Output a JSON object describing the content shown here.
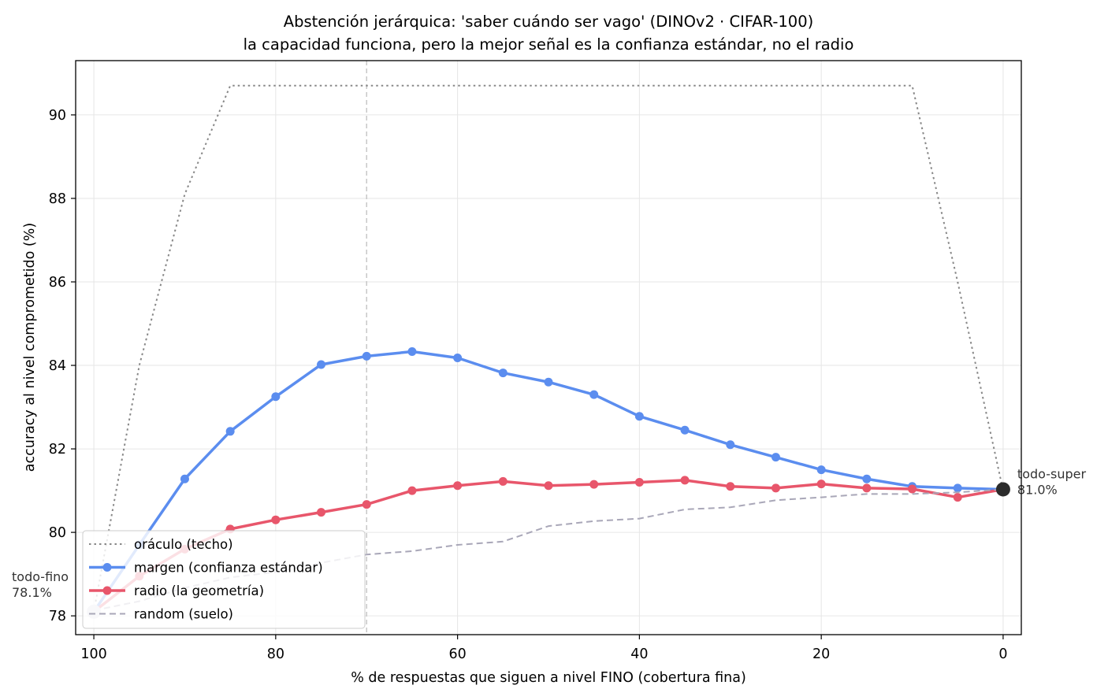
{
  "chart_data": {
    "type": "line",
    "title": "Abstención jerárquica: 'saber cuándo ser vago' (DINOv2 · CIFAR-100)",
    "subtitle": "la capacidad funciona, pero la mejor señal es la confianza estándar, no el radio",
    "xlabel": "% de respuestas que siguen a nivel FINO  (cobertura fina)",
    "ylabel": "accuracy al nivel comprometido (%)",
    "x_reversed": true,
    "xlim": [
      102,
      -2
    ],
    "ylim": [
      77.55,
      91.3
    ],
    "xticks": [
      100,
      80,
      60,
      40,
      20,
      0
    ],
    "yticks": [
      78,
      80,
      82,
      84,
      86,
      88,
      90
    ],
    "grid": true,
    "legend_position": "lower-left",
    "vline_x": 70,
    "x": [
      100,
      95,
      90,
      85,
      80,
      75,
      70,
      65,
      60,
      55,
      50,
      45,
      40,
      35,
      30,
      25,
      20,
      15,
      10,
      5,
      0
    ],
    "series": [
      {
        "name": "oráculo (techo)",
        "style": "dotted",
        "color": "#888888",
        "markers": false,
        "width": 2,
        "values": [
          78.1,
          84.0,
          88.1,
          90.7,
          90.7,
          90.7,
          90.7,
          90.7,
          90.7,
          90.7,
          90.7,
          90.7,
          90.7,
          90.7,
          90.7,
          90.7,
          90.7,
          90.7,
          90.7,
          86.0,
          81.0
        ]
      },
      {
        "name": "margen (confianza estándar)",
        "style": "solid",
        "color": "#5b8def",
        "markers": true,
        "width": 3.5,
        "values": [
          78.1,
          79.7,
          81.28,
          82.42,
          83.25,
          84.02,
          84.22,
          84.33,
          84.18,
          83.82,
          83.6,
          83.3,
          82.78,
          82.45,
          82.1,
          81.8,
          81.5,
          81.28,
          81.1,
          81.06,
          81.03
        ]
      },
      {
        "name": "radio (la geometría)",
        "style": "solid",
        "color": "#e8566b",
        "markers": true,
        "width": 3.5,
        "values": [
          78.1,
          78.95,
          79.6,
          80.08,
          80.3,
          80.48,
          80.67,
          81.0,
          81.12,
          81.22,
          81.12,
          81.15,
          81.2,
          81.25,
          81.1,
          81.06,
          81.16,
          81.06,
          81.04,
          80.84,
          81.03
        ]
      },
      {
        "name": "random (suelo)",
        "style": "dashed",
        "color": "#a9a7b8",
        "markers": false,
        "width": 2,
        "values": [
          78.13,
          78.35,
          78.67,
          78.92,
          79.05,
          79.27,
          79.47,
          79.55,
          79.7,
          79.78,
          80.15,
          80.27,
          80.33,
          80.55,
          80.6,
          80.77,
          80.84,
          80.92,
          80.92,
          80.96,
          81.03
        ]
      }
    ],
    "annotations": [
      {
        "x": 100,
        "y": 78.1,
        "label_top": "todo-fino",
        "label_bottom": "78.1%",
        "side": "left",
        "point_color": "#d8d8e0"
      },
      {
        "x": 0,
        "y": 81.03,
        "label_top": "todo-super",
        "label_bottom": "81.0%",
        "side": "right",
        "point_color": "#2b2b2b"
      }
    ],
    "colors": {
      "grid": "#e6e6e6",
      "axis": "#000000",
      "vline": "#c8c8c8",
      "legend_border": "#cccccc",
      "annotation_text": "#333333"
    }
  }
}
